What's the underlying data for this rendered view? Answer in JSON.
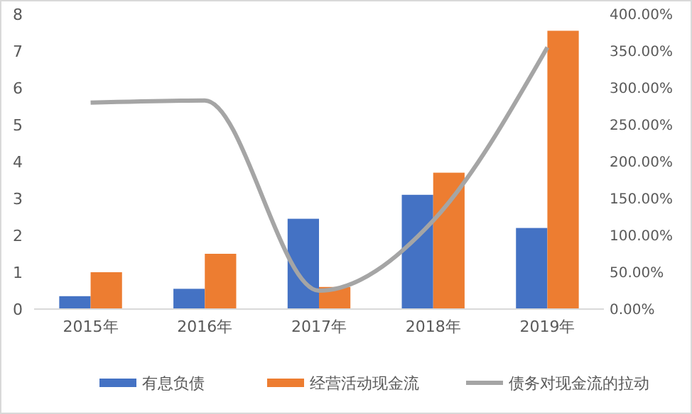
{
  "chart_data": {
    "type": "bar",
    "categories": [
      "2015年",
      "2016年",
      "2017年",
      "2018年",
      "2019年"
    ],
    "series": [
      {
        "name": "有息负债",
        "color": "#4472c4",
        "values": [
          0.35,
          0.55,
          2.45,
          3.1,
          2.2
        ]
      },
      {
        "name": "经营活动现金流",
        "color": "#ed7d31",
        "values": [
          1.0,
          1.5,
          0.6,
          3.7,
          7.55
        ]
      },
      {
        "name": "债务对现金流的拉动",
        "color": "#a5a5a5",
        "type": "line",
        "axis": "y2",
        "values": [
          280,
          283,
          25,
          120,
          355
        ]
      }
    ],
    "ylim": [
      0,
      8
    ],
    "yticks": [
      0,
      1,
      2,
      3,
      4,
      5,
      6,
      7,
      8
    ],
    "y2lim": [
      0,
      400
    ],
    "y2ticks": [
      {
        "value": 0,
        "label": "0.00%"
      },
      {
        "value": 50,
        "label": "50.00%"
      },
      {
        "value": 100,
        "label": "100.00%"
      },
      {
        "value": 150,
        "label": "150.00%"
      },
      {
        "value": 200,
        "label": "200.00%"
      },
      {
        "value": 250,
        "label": "250.00%"
      },
      {
        "value": 300,
        "label": "300.00%"
      },
      {
        "value": 350,
        "label": "350.00%"
      },
      {
        "value": 400,
        "label": "400.00%"
      }
    ],
    "legend": "bottom",
    "grid": false
  }
}
